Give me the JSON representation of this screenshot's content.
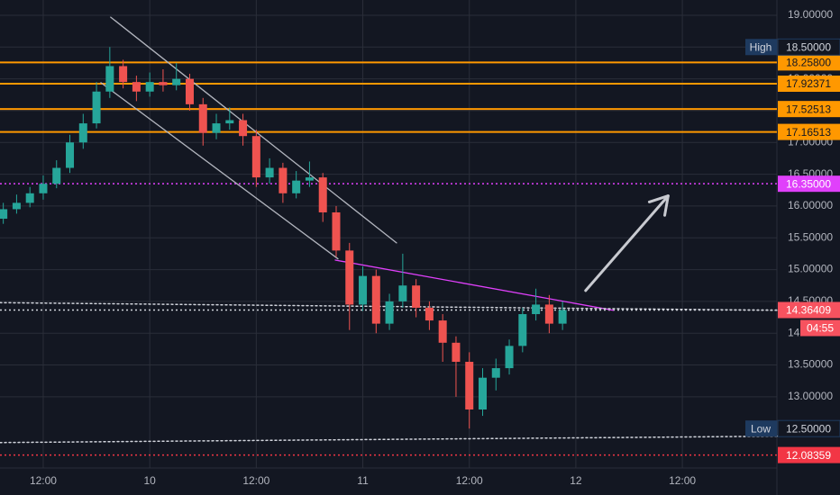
{
  "chart_data": {
    "type": "candlestick",
    "background": "#131722",
    "up_color": "#26a69a",
    "down_color": "#ef5350",
    "grid": true,
    "xlim": [
      -16.87,
      70.65
    ],
    "ylim": [
      11.88,
      19.24
    ],
    "xticks": [
      {
        "value": -12,
        "label": "12:00"
      },
      {
        "value": 0,
        "label": "10"
      },
      {
        "value": 12,
        "label": "12:00"
      },
      {
        "value": 24,
        "label": "11"
      },
      {
        "value": 36,
        "label": "12:00"
      },
      {
        "value": 48,
        "label": "12"
      },
      {
        "value": 60,
        "label": "12:00"
      }
    ],
    "yticks": [
      {
        "value": 13,
        "label": "13.00000"
      },
      {
        "value": 13.5,
        "label": "13.50000"
      },
      {
        "value": 14,
        "label": "14.00000"
      },
      {
        "value": 14.5,
        "label": "14.50000"
      },
      {
        "value": 15,
        "label": "15.00000"
      },
      {
        "value": 15.5,
        "label": "15.50000"
      },
      {
        "value": 16,
        "label": "16.00000"
      },
      {
        "value": 16.5,
        "label": "16.50000"
      },
      {
        "value": 17,
        "label": "17.00000"
      },
      {
        "value": 17.5,
        "label": "17.50000"
      },
      {
        "value": 18,
        "label": "18.00000"
      },
      {
        "value": 18.5,
        "label": "18.50000"
      },
      {
        "value": 19,
        "label": "19.00000"
      }
    ],
    "x": [
      -16.5,
      -15,
      -13.5,
      -12,
      -10.5,
      -9,
      -7.5,
      -6,
      -4.5,
      -3,
      -1.5,
      0,
      1.5,
      3,
      4.5,
      6,
      7.5,
      9,
      10.5,
      12,
      13.5,
      15,
      16.5,
      18,
      19.5,
      21,
      22.5,
      24,
      25.5,
      27,
      28.5,
      30,
      31.5,
      33,
      34.5,
      36,
      37.5,
      39,
      40.5,
      42,
      43.5,
      45,
      46.5
    ],
    "open": [
      15.8,
      15.95,
      16.05,
      16.2,
      16.35,
      16.6,
      17.0,
      17.3,
      17.8,
      18.2,
      17.95,
      17.8,
      17.95,
      17.9,
      18.0,
      17.6,
      17.15,
      17.3,
      17.35,
      17.1,
      16.45,
      16.6,
      16.2,
      16.4,
      16.45,
      15.9,
      15.3,
      14.45,
      14.9,
      14.15,
      14.5,
      14.75,
      14.4,
      14.2,
      13.85,
      13.55,
      12.8,
      13.3,
      13.45,
      13.8,
      14.3,
      14.45,
      14.15
    ],
    "high": [
      16.05,
      16.18,
      16.3,
      16.48,
      16.72,
      17.12,
      17.45,
      17.95,
      18.5,
      18.3,
      18.05,
      18.1,
      18.15,
      18.25,
      18.08,
      17.7,
      17.45,
      17.55,
      17.45,
      17.2,
      16.75,
      16.68,
      16.55,
      16.7,
      16.52,
      16.0,
      15.42,
      15.05,
      15.0,
      14.62,
      15.25,
      14.85,
      14.5,
      14.3,
      13.95,
      13.7,
      13.45,
      13.6,
      13.9,
      14.4,
      14.7,
      14.6,
      14.5
    ],
    "low": [
      15.72,
      15.88,
      15.98,
      16.1,
      16.28,
      16.52,
      16.9,
      17.22,
      17.7,
      17.85,
      17.65,
      17.72,
      17.8,
      17.82,
      17.5,
      16.95,
      17.05,
      17.2,
      16.95,
      16.3,
      16.35,
      16.05,
      16.12,
      16.3,
      15.75,
      15.2,
      14.05,
      14.35,
      14.0,
      14.05,
      14.4,
      14.25,
      14.05,
      13.55,
      13.0,
      12.5,
      12.7,
      13.1,
      13.35,
      13.7,
      14.2,
      14.0,
      14.05
    ],
    "close": [
      15.95,
      16.05,
      16.2,
      16.35,
      16.6,
      17.0,
      17.3,
      17.8,
      18.2,
      17.95,
      17.8,
      17.95,
      17.9,
      18.0,
      17.6,
      17.15,
      17.3,
      17.35,
      17.1,
      16.45,
      16.6,
      16.2,
      16.4,
      16.45,
      15.9,
      15.3,
      14.45,
      14.9,
      14.15,
      14.5,
      14.75,
      14.4,
      14.2,
      13.85,
      13.55,
      12.8,
      13.3,
      13.45,
      13.8,
      14.3,
      14.45,
      14.15,
      14.36409
    ],
    "levels": [
      {
        "value": 18.258,
        "label": "18.25800",
        "line_color": "#ff9800",
        "tag_color": "#ff9800",
        "style": "solid"
      },
      {
        "value": 17.92371,
        "label": "17.92371",
        "line_color": "#ff9800",
        "tag_color": "#ff9800",
        "style": "solid"
      },
      {
        "value": 17.52513,
        "label": "17.52513",
        "line_color": "#ff9800",
        "tag_color": "#ff9800",
        "style": "solid"
      },
      {
        "value": 17.16513,
        "label": "17.16513",
        "line_color": "#ff9800",
        "tag_color": "#ff9800",
        "style": "solid"
      },
      {
        "value": 16.35,
        "label": "16.35000",
        "line_color": "#e040fb",
        "tag_color": "#e040fb",
        "style": "dotted"
      },
      {
        "value": 14.36409,
        "label": "14.36409",
        "line_color": "#d1d4dc",
        "tag_color": "#f7525f",
        "style": "dotted"
      },
      {
        "value": 12.08359,
        "label": "12.08359",
        "line_color": "#f23645",
        "tag_color": "#f23645",
        "style": "dotted"
      }
    ],
    "countdown": "04:55",
    "extremes": [
      {
        "name": "High",
        "value": 18.5,
        "label": "18.50000"
      },
      {
        "name": "Low",
        "value": 12.5,
        "label": "12.50000"
      }
    ],
    "drawings": [
      {
        "color": "#b2b5be",
        "style": "solid",
        "arrow": false,
        "points": [
          [
            -4.4,
            18.97
          ],
          [
            27.8,
            15.42
          ]
        ]
      },
      {
        "color": "#b2b5be",
        "style": "solid",
        "arrow": false,
        "points": [
          [
            -5.5,
            17.94
          ],
          [
            21.2,
            15.17
          ]
        ]
      },
      {
        "color": "#e040fb",
        "style": "solid",
        "arrow": false,
        "points": [
          [
            20.9,
            15.15
          ],
          [
            52.2,
            14.36
          ]
        ]
      },
      {
        "color": "#d1d4dc",
        "style": "dotted",
        "arrow": false,
        "points": [
          [
            -16.87,
            14.48
          ],
          [
            70.65,
            14.36
          ]
        ]
      },
      {
        "color": "#d1d4dc",
        "style": "dotted",
        "arrow": false,
        "points": [
          [
            -16.87,
            12.28
          ],
          [
            70.65,
            12.38
          ]
        ]
      },
      {
        "color": "#c8cad0",
        "style": "solid",
        "arrow": true,
        "points": [
          [
            49.1,
            14.67
          ],
          [
            58.4,
            16.16
          ]
        ]
      }
    ]
  }
}
